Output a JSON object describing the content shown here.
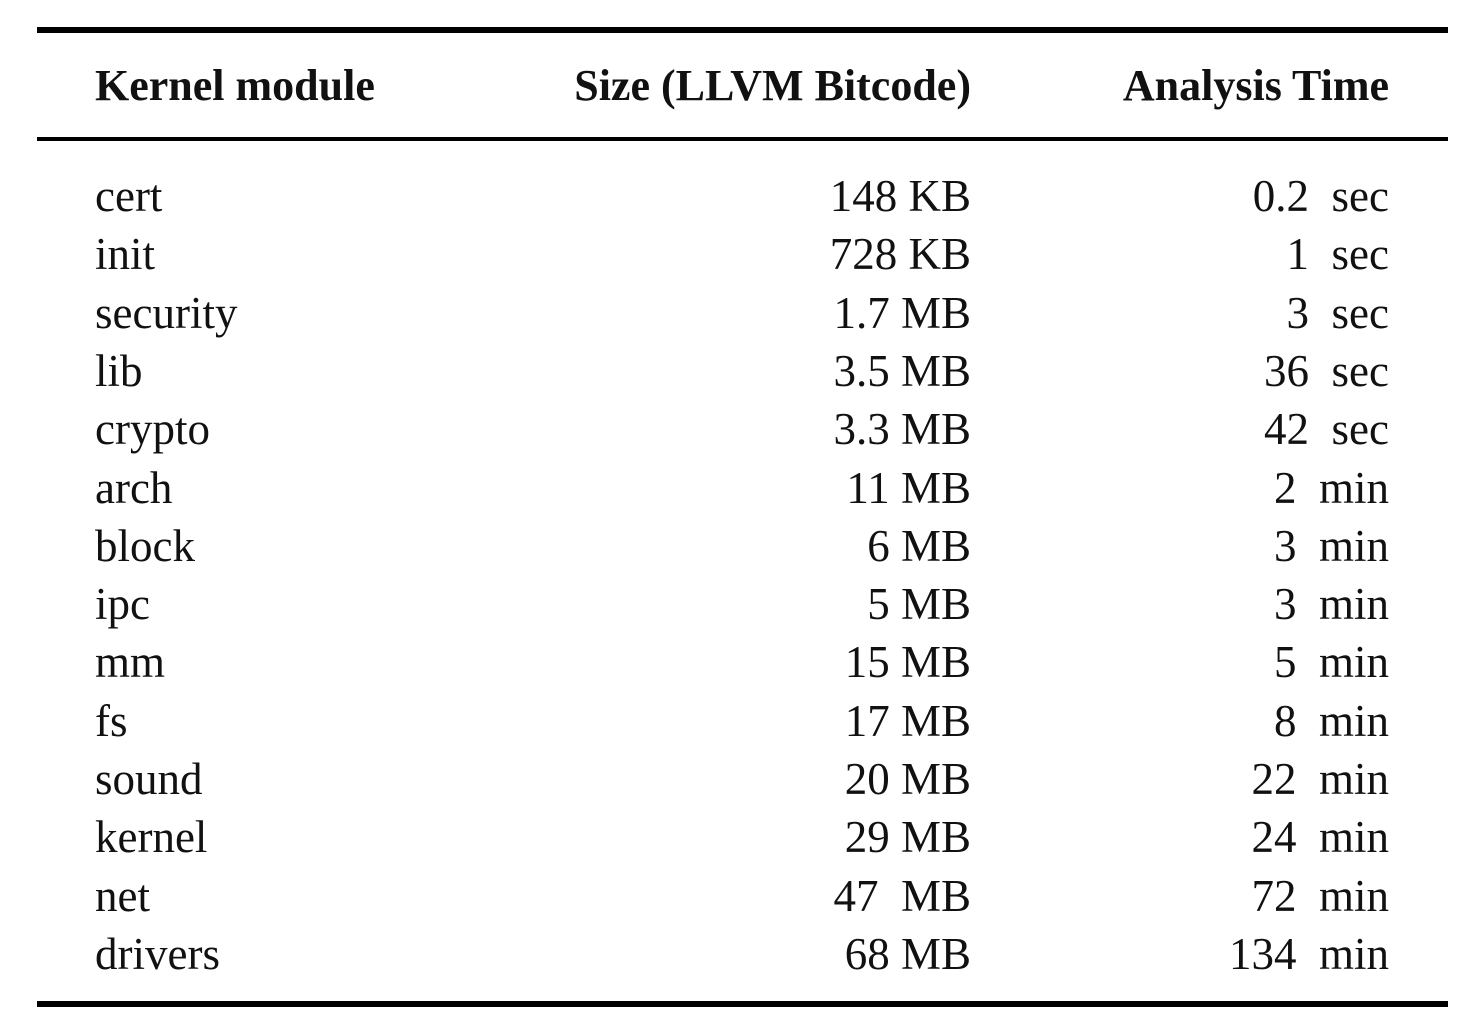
{
  "table": {
    "headers": [
      "Kernel module",
      "Size (LLVM Bitcode)",
      "Analysis Time"
    ],
    "rows": [
      [
        "cert",
        "148 KB",
        "0.2  sec"
      ],
      [
        "init",
        "728 KB",
        "1  sec"
      ],
      [
        "security",
        "1.7 MB",
        "3  sec"
      ],
      [
        "lib",
        "3.5 MB",
        "36  sec"
      ],
      [
        "crypto",
        "3.3 MB",
        "42  sec"
      ],
      [
        "arch",
        "11 MB",
        "2  min"
      ],
      [
        "block",
        "6 MB",
        "3  min"
      ],
      [
        "ipc",
        "5 MB",
        "3  min"
      ],
      [
        "mm",
        "15 MB",
        "5  min"
      ],
      [
        "fs",
        "17 MB",
        "8  min"
      ],
      [
        "sound",
        "20 MB",
        "22  min"
      ],
      [
        "kernel",
        "29 MB",
        "24  min"
      ],
      [
        "net",
        "47  MB",
        "72  min"
      ],
      [
        "drivers",
        "68 MB",
        "134  min"
      ]
    ]
  }
}
